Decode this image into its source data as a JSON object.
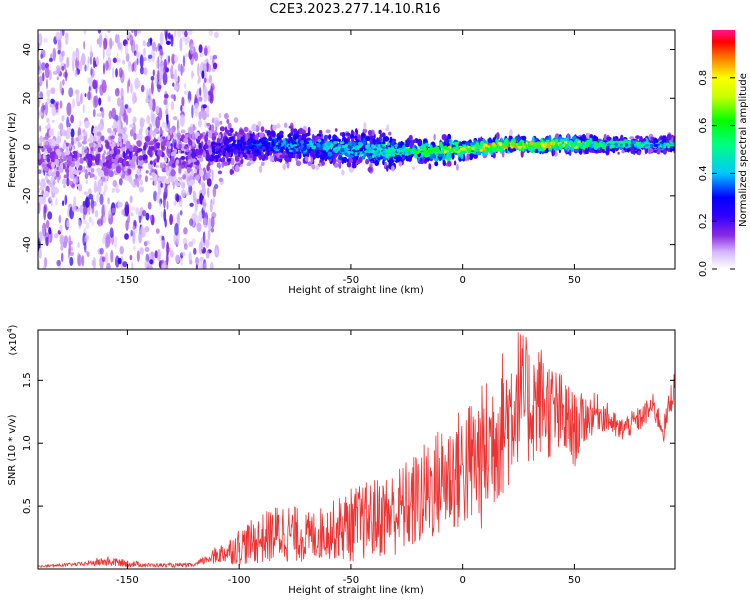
{
  "title": "C2E3.2023.277.14.10.R16",
  "chart_data": [
    {
      "type": "heatmap",
      "xlabel": "Height of straight line (km)",
      "ylabel": "Frequency (Hz)",
      "xlim": [
        -190,
        95
      ],
      "ylim": [
        -50,
        48
      ],
      "xticks": [
        -150,
        -100,
        -50,
        0,
        50
      ],
      "xtick_labels": [
        "-150",
        "-100",
        "-50",
        "0",
        "50"
      ],
      "yticks": [
        -40,
        -20,
        0,
        20,
        40
      ],
      "ytick_labels": [
        "-40",
        "-20",
        "0",
        "20",
        "40"
      ],
      "colorbar": {
        "label": "Normalized spectral amplitude",
        "range": [
          0,
          1
        ],
        "ticks": [
          0.0,
          0.2,
          0.4,
          0.6,
          0.8
        ],
        "tick_labels": [
          "0.0",
          "0.2",
          "0.4",
          "0.6",
          "0.8"
        ],
        "colors": [
          "#ffffff",
          "#d6b8ff",
          "#8a2be2",
          "#3300ff",
          "#0000ff",
          "#00c8ff",
          "#00ff80",
          "#00ff00",
          "#c8ff00",
          "#ffff00",
          "#ff8000",
          "#ff0000",
          "#ff1493"
        ]
      },
      "ridge": {
        "x": [
          -190,
          -160,
          -120,
          -100,
          -80,
          -60,
          -40,
          -20,
          0,
          20,
          40,
          60,
          80,
          95
        ],
        "frequency": [
          -5,
          -4,
          -2,
          0,
          1,
          0,
          -1,
          -2,
          -1,
          1,
          1,
          1,
          1,
          1
        ],
        "amplitude": [
          0.15,
          0.18,
          0.2,
          0.3,
          0.4,
          0.45,
          0.5,
          0.6,
          0.8,
          0.85,
          0.8,
          0.6,
          0.5,
          0.5
        ]
      },
      "grid": false,
      "legend": "none"
    },
    {
      "type": "line",
      "xlabel": "Height of straight line (km)",
      "ylabel": "SNR (10 * v/v)",
      "y_multiplier_label": "(x10",
      "y_multiplier_exponent": "4",
      "xlim": [
        -190,
        95
      ],
      "ylim": [
        0,
        1.9
      ],
      "xticks": [
        -150,
        -100,
        -50,
        0,
        50
      ],
      "xtick_labels": [
        "-150",
        "-100",
        "-50",
        "0",
        "50"
      ],
      "yticks": [
        0.5,
        1.0,
        1.5
      ],
      "ytick_labels": [
        "0.5",
        "1.0",
        "1.5"
      ],
      "color": "#ee3333",
      "series": [
        {
          "x": [
            -190,
            -170,
            -160,
            -140,
            -120,
            -112,
            -105,
            -100,
            -90,
            -80,
            -70,
            -60,
            -50,
            -40,
            -30,
            -20,
            -10,
            0,
            5,
            10,
            15,
            20,
            25,
            30,
            35,
            40,
            45,
            50,
            55,
            60,
            65,
            70,
            75,
            80,
            85,
            90,
            95
          ],
          "y": [
            0.02,
            0.04,
            0.06,
            0.03,
            0.03,
            0.1,
            0.14,
            0.18,
            0.24,
            0.3,
            0.25,
            0.3,
            0.35,
            0.4,
            0.45,
            0.55,
            0.7,
            0.8,
            0.85,
            0.9,
            1.1,
            1.2,
            1.4,
            1.3,
            1.35,
            1.25,
            1.2,
            1.1,
            1.2,
            1.25,
            1.2,
            1.1,
            1.15,
            1.2,
            1.3,
            1.1,
            1.5
          ],
          "spread": [
            0.01,
            0.02,
            0.05,
            0.02,
            0.02,
            0.06,
            0.1,
            0.15,
            0.2,
            0.25,
            0.2,
            0.22,
            0.3,
            0.32,
            0.35,
            0.4,
            0.45,
            0.5,
            0.55,
            0.6,
            0.6,
            0.6,
            0.55,
            0.5,
            0.45,
            0.4,
            0.35,
            0.3,
            0.2,
            0.15,
            0.12,
            0.1,
            0.1,
            0.1,
            0.1,
            0.1,
            0.15
          ]
        }
      ],
      "grid": false,
      "legend": "none"
    }
  ]
}
